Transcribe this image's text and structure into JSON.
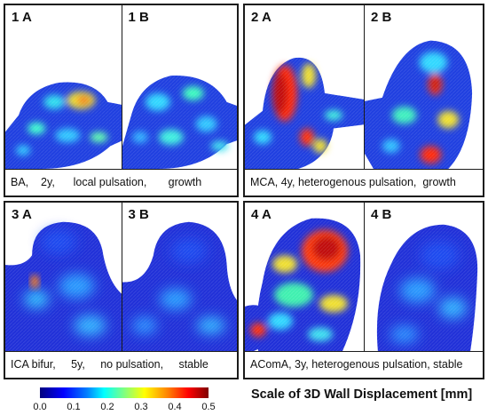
{
  "panels": [
    {
      "label_a": "1 A",
      "label_b": "1 B",
      "caption": "BA,    2y,      local pulsation,       growth"
    },
    {
      "label_a": "2 A",
      "label_b": "2 B",
      "caption": "MCA, 4y, heterogenous pulsation,  growth"
    },
    {
      "label_a": "3 A",
      "label_b": "3 B",
      "caption": "ICA bifur,     5y,     no pulsation,     stable"
    },
    {
      "label_a": "4 A",
      "label_b": "4 B",
      "caption": "AComA, 3y, heterogenous pulsation, stable"
    }
  ],
  "colorbar": {
    "ticks": [
      "0.0",
      "0.1",
      "0.2",
      "0.3",
      "0.4",
      "0.5"
    ],
    "title": "Scale of 3D Wall Displacement [mm]",
    "colors": [
      "#00007f",
      "#0000ff",
      "#00ffff",
      "#ffff00",
      "#ff0000",
      "#7f0000"
    ]
  }
}
